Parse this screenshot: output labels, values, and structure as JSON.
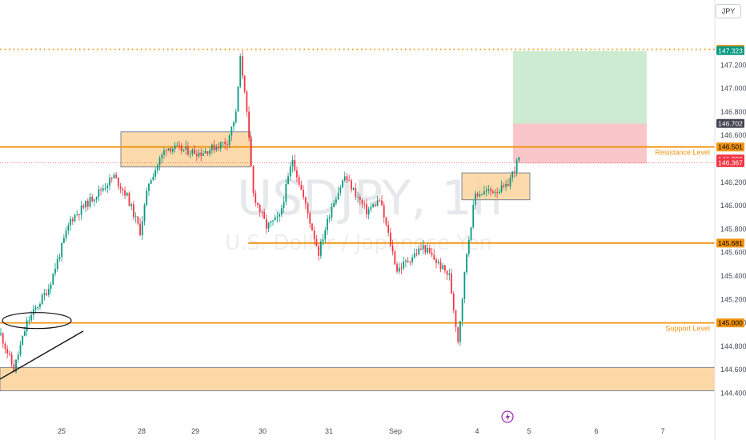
{
  "header": {
    "currency_button": "JPY"
  },
  "watermark": {
    "symbol": "USDJPY, 1h",
    "description": "U.S. Dollar / Japanese Yen"
  },
  "colors": {
    "up": "#089981",
    "down": "#f23645",
    "orange": "#f0930f",
    "zone_fill": "#fbd49c",
    "zone_border": "#5b6e8c",
    "target_fill": "#cdebd0",
    "stop_fill": "#f9c6ca"
  },
  "chart_data": {
    "type": "candlestick",
    "ylim": [
      144.35,
      147.45
    ],
    "y_ticks": [
      "147.200",
      "147.000",
      "146.800",
      "146.600",
      "146.200",
      "146.000",
      "145.800",
      "145.600",
      "145.400",
      "145.200",
      "145.000",
      "144.800",
      "144.600",
      "144.400"
    ],
    "x_ticks": [
      "25",
      "28",
      "29",
      "30",
      "31",
      "Sep",
      "4",
      "5",
      "6",
      "7"
    ],
    "price_tags": [
      {
        "label": "147.334",
        "value": 147.334,
        "bg": "#f0930f",
        "fg": "#000000"
      },
      {
        "label": "147.323",
        "value": 147.323,
        "bg": "#089981",
        "fg": "#ffffff"
      },
      {
        "label": "146.702",
        "value": 146.702,
        "bg": "#434651",
        "fg": "#ffffff"
      },
      {
        "label": "146.501",
        "value": 146.501,
        "bg": "#f0930f",
        "fg": "#000000"
      },
      {
        "label": "146.398",
        "value": 146.398,
        "bg": "#f23645",
        "fg": "#ffffff"
      },
      {
        "label": "146.367",
        "value": 146.367,
        "bg": "#f23645",
        "fg": "#ffffff"
      },
      {
        "label": "145.681",
        "value": 145.681,
        "bg": "#f0930f",
        "fg": "#000000"
      },
      {
        "label": "145.000",
        "value": 145.0,
        "bg": "#f0930f",
        "fg": "#000000"
      }
    ],
    "levels": [
      {
        "name": "Resistance Level",
        "value": 146.501,
        "style": "solid",
        "label": "Resistance Level"
      },
      {
        "name": "Support Level",
        "value": 145.0,
        "style": "solid",
        "label": "Support Level"
      },
      {
        "name": "mid level",
        "value": 145.681,
        "style": "solid",
        "label": ""
      },
      {
        "name": "high level",
        "value": 147.334,
        "style": "dotted",
        "label": ""
      }
    ],
    "current_price": 146.367,
    "anchors": [
      {
        "i": 0,
        "v": 144.9
      },
      {
        "i": 6,
        "v": 144.6
      },
      {
        "i": 12,
        "v": 145.0
      },
      {
        "i": 22,
        "v": 145.3
      },
      {
        "i": 32,
        "v": 145.88
      },
      {
        "i": 44,
        "v": 146.1
      },
      {
        "i": 52,
        "v": 146.25
      },
      {
        "i": 58,
        "v": 146.08
      },
      {
        "i": 64,
        "v": 145.78
      },
      {
        "i": 68,
        "v": 146.2
      },
      {
        "i": 76,
        "v": 146.5
      },
      {
        "i": 92,
        "v": 146.45
      },
      {
        "i": 104,
        "v": 146.55
      },
      {
        "i": 108,
        "v": 146.78
      },
      {
        "i": 110,
        "v": 147.25
      },
      {
        "i": 112,
        "v": 147.0
      },
      {
        "i": 116,
        "v": 146.1
      },
      {
        "i": 122,
        "v": 145.82
      },
      {
        "i": 128,
        "v": 145.9
      },
      {
        "i": 134,
        "v": 146.4
      },
      {
        "i": 140,
        "v": 146.0
      },
      {
        "i": 146,
        "v": 145.6
      },
      {
        "i": 152,
        "v": 146.0
      },
      {
        "i": 158,
        "v": 146.25
      },
      {
        "i": 168,
        "v": 145.95
      },
      {
        "i": 174,
        "v": 146.05
      },
      {
        "i": 182,
        "v": 145.45
      },
      {
        "i": 194,
        "v": 145.65
      },
      {
        "i": 206,
        "v": 145.4
      },
      {
        "i": 210,
        "v": 144.85
      },
      {
        "i": 214,
        "v": 145.6
      },
      {
        "i": 218,
        "v": 146.1
      },
      {
        "i": 232,
        "v": 146.15
      },
      {
        "i": 238,
        "v": 146.4
      }
    ]
  }
}
